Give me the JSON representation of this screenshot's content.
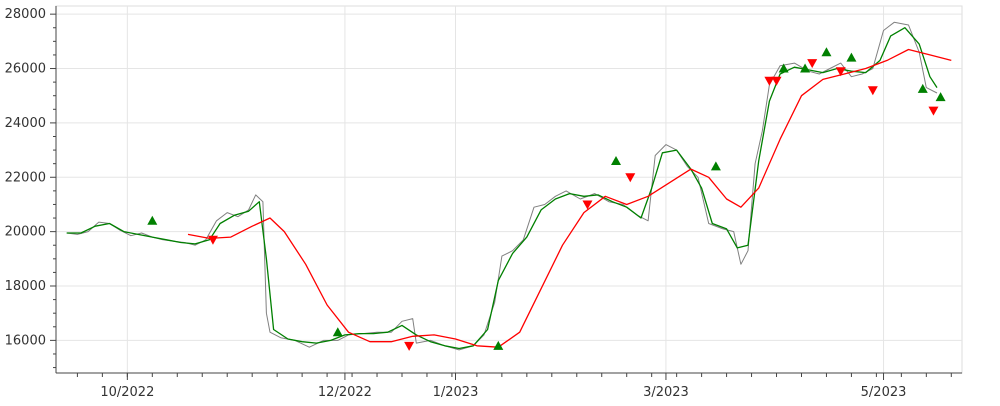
{
  "chart_data": {
    "type": "line",
    "title": "",
    "xlabel": "",
    "ylabel": "",
    "x_range": [
      "2022-09-11",
      "2023-05-23"
    ],
    "ylim": [
      14800,
      28300
    ],
    "grid": true,
    "legend": "none",
    "y_ticks": [
      16000,
      18000,
      20000,
      22000,
      24000,
      26000,
      28000
    ],
    "y_tick_labels": [
      "16000",
      "18000",
      "20000",
      "22000",
      "24000",
      "26000",
      "28000"
    ],
    "x_ticks": [
      "2022-10-01",
      "2022-12-01",
      "2023-01-01",
      "2023-03-01",
      "2023-05-01"
    ],
    "x_tick_labels": [
      "10/2022",
      "12/2022",
      "1/2023",
      "3/2023",
      "5/2023"
    ],
    "series": [
      {
        "role": "price",
        "color": "#808080",
        "points": [
          [
            "2022-09-14",
            19950
          ],
          [
            "2022-09-17",
            19900
          ],
          [
            "2022-09-20",
            20000
          ],
          [
            "2022-09-23",
            20350
          ],
          [
            "2022-09-26",
            20300
          ],
          [
            "2022-09-29",
            20050
          ],
          [
            "2022-10-02",
            19850
          ],
          [
            "2022-10-05",
            19950
          ],
          [
            "2022-10-08",
            19800
          ],
          [
            "2022-10-11",
            19700
          ],
          [
            "2022-10-14",
            19650
          ],
          [
            "2022-10-17",
            19600
          ],
          [
            "2022-10-20",
            19500
          ],
          [
            "2022-10-23",
            19700
          ],
          [
            "2022-10-26",
            20400
          ],
          [
            "2022-10-29",
            20700
          ],
          [
            "2022-11-01",
            20550
          ],
          [
            "2022-11-04",
            20800
          ],
          [
            "2022-11-06",
            21350
          ],
          [
            "2022-11-08",
            21100
          ],
          [
            "2022-11-09",
            17000
          ],
          [
            "2022-11-10",
            16300
          ],
          [
            "2022-11-13",
            16100
          ],
          [
            "2022-11-17",
            16000
          ],
          [
            "2022-11-21",
            15750
          ],
          [
            "2022-11-25",
            16000
          ],
          [
            "2022-11-29",
            16000
          ],
          [
            "2022-12-02",
            16200
          ],
          [
            "2022-12-06",
            16250
          ],
          [
            "2022-12-10",
            16300
          ],
          [
            "2022-12-14",
            16300
          ],
          [
            "2022-12-17",
            16700
          ],
          [
            "2022-12-20",
            16800
          ],
          [
            "2022-12-21",
            15900
          ],
          [
            "2022-12-25",
            16000
          ],
          [
            "2022-12-29",
            15800
          ],
          [
            "2023-01-02",
            15650
          ],
          [
            "2023-01-06",
            15800
          ],
          [
            "2023-01-09",
            16200
          ],
          [
            "2023-01-12",
            17400
          ],
          [
            "2023-01-14",
            19100
          ],
          [
            "2023-01-17",
            19300
          ],
          [
            "2023-01-20",
            19700
          ],
          [
            "2023-01-23",
            20900
          ],
          [
            "2023-01-26",
            21000
          ],
          [
            "2023-01-29",
            21300
          ],
          [
            "2023-02-01",
            21500
          ],
          [
            "2023-02-05",
            21200
          ],
          [
            "2023-02-09",
            21400
          ],
          [
            "2023-02-13",
            21100
          ],
          [
            "2023-02-17",
            21000
          ],
          [
            "2023-02-21",
            20600
          ],
          [
            "2023-02-24",
            20400
          ],
          [
            "2023-02-26",
            22800
          ],
          [
            "2023-03-01",
            23200
          ],
          [
            "2023-03-04",
            23000
          ],
          [
            "2023-03-07",
            22400
          ],
          [
            "2023-03-10",
            22000
          ],
          [
            "2023-03-13",
            20300
          ],
          [
            "2023-03-17",
            20100
          ],
          [
            "2023-03-20",
            20000
          ],
          [
            "2023-03-22",
            18800
          ],
          [
            "2023-03-24",
            19300
          ],
          [
            "2023-03-26",
            22500
          ],
          [
            "2023-03-28",
            23700
          ],
          [
            "2023-03-30",
            25400
          ],
          [
            "2023-04-02",
            26100
          ],
          [
            "2023-04-06",
            26200
          ],
          [
            "2023-04-10",
            25900
          ],
          [
            "2023-04-13",
            25800
          ],
          [
            "2023-04-16",
            26000
          ],
          [
            "2023-04-19",
            26200
          ],
          [
            "2023-04-22",
            25700
          ],
          [
            "2023-04-25",
            25800
          ],
          [
            "2023-04-28",
            26000
          ],
          [
            "2023-05-01",
            27400
          ],
          [
            "2023-05-04",
            27700
          ],
          [
            "2023-05-08",
            27600
          ],
          [
            "2023-05-11",
            26600
          ],
          [
            "2023-05-13",
            25300
          ],
          [
            "2023-05-16",
            25100
          ]
        ]
      },
      {
        "role": "fast-average",
        "color": "#008000",
        "points": [
          [
            "2022-09-14",
            19950
          ],
          [
            "2022-09-18",
            19950
          ],
          [
            "2022-09-22",
            20200
          ],
          [
            "2022-09-26",
            20300
          ],
          [
            "2022-09-30",
            20000
          ],
          [
            "2022-10-04",
            19900
          ],
          [
            "2022-10-08",
            19800
          ],
          [
            "2022-10-12",
            19700
          ],
          [
            "2022-10-16",
            19600
          ],
          [
            "2022-10-20",
            19550
          ],
          [
            "2022-10-24",
            19700
          ],
          [
            "2022-10-27",
            20300
          ],
          [
            "2022-10-31",
            20600
          ],
          [
            "2022-11-04",
            20750
          ],
          [
            "2022-11-07",
            21100
          ],
          [
            "2022-11-09",
            19000
          ],
          [
            "2022-11-11",
            16400
          ],
          [
            "2022-11-15",
            16050
          ],
          [
            "2022-11-19",
            15950
          ],
          [
            "2022-11-23",
            15900
          ],
          [
            "2022-11-27",
            16000
          ],
          [
            "2022-12-01",
            16200
          ],
          [
            "2022-12-05",
            16250
          ],
          [
            "2022-12-09",
            16250
          ],
          [
            "2022-12-13",
            16300
          ],
          [
            "2022-12-17",
            16550
          ],
          [
            "2022-12-21",
            16200
          ],
          [
            "2022-12-25",
            15950
          ],
          [
            "2022-12-29",
            15800
          ],
          [
            "2023-01-02",
            15700
          ],
          [
            "2023-01-06",
            15800
          ],
          [
            "2023-01-10",
            16400
          ],
          [
            "2023-01-13",
            18200
          ],
          [
            "2023-01-17",
            19200
          ],
          [
            "2023-01-21",
            19800
          ],
          [
            "2023-01-25",
            20800
          ],
          [
            "2023-01-29",
            21200
          ],
          [
            "2023-02-02",
            21400
          ],
          [
            "2023-02-06",
            21300
          ],
          [
            "2023-02-10",
            21350
          ],
          [
            "2023-02-14",
            21100
          ],
          [
            "2023-02-18",
            20900
          ],
          [
            "2023-02-22",
            20500
          ],
          [
            "2023-02-25",
            21600
          ],
          [
            "2023-02-28",
            22900
          ],
          [
            "2023-03-04",
            23000
          ],
          [
            "2023-03-08",
            22300
          ],
          [
            "2023-03-11",
            21600
          ],
          [
            "2023-03-14",
            20300
          ],
          [
            "2023-03-18",
            20100
          ],
          [
            "2023-03-21",
            19400
          ],
          [
            "2023-03-24",
            19500
          ],
          [
            "2023-03-27",
            22600
          ],
          [
            "2023-03-30",
            24800
          ],
          [
            "2023-04-02",
            25800
          ],
          [
            "2023-04-06",
            26050
          ],
          [
            "2023-04-10",
            25950
          ],
          [
            "2023-04-14",
            25850
          ],
          [
            "2023-04-18",
            26000
          ],
          [
            "2023-04-22",
            25900
          ],
          [
            "2023-04-26",
            25850
          ],
          [
            "2023-04-30",
            26300
          ],
          [
            "2023-05-03",
            27200
          ],
          [
            "2023-05-07",
            27500
          ],
          [
            "2023-05-11",
            26900
          ],
          [
            "2023-05-14",
            25700
          ],
          [
            "2023-05-16",
            25300
          ]
        ]
      },
      {
        "role": "slow-average",
        "color": "#ff0000",
        "points": [
          [
            "2022-10-18",
            19900
          ],
          [
            "2022-10-24",
            19750
          ],
          [
            "2022-10-30",
            19800
          ],
          [
            "2022-11-05",
            20200
          ],
          [
            "2022-11-10",
            20500
          ],
          [
            "2022-11-14",
            20000
          ],
          [
            "2022-11-20",
            18800
          ],
          [
            "2022-11-26",
            17300
          ],
          [
            "2022-12-02",
            16300
          ],
          [
            "2022-12-08",
            15950
          ],
          [
            "2022-12-14",
            15950
          ],
          [
            "2022-12-20",
            16150
          ],
          [
            "2022-12-26",
            16200
          ],
          [
            "2023-01-01",
            16050
          ],
          [
            "2023-01-07",
            15800
          ],
          [
            "2023-01-13",
            15750
          ],
          [
            "2023-01-19",
            16300
          ],
          [
            "2023-01-25",
            17900
          ],
          [
            "2023-01-31",
            19500
          ],
          [
            "2023-02-06",
            20700
          ],
          [
            "2023-02-12",
            21300
          ],
          [
            "2023-02-18",
            21000
          ],
          [
            "2023-02-24",
            21300
          ],
          [
            "2023-03-02",
            21800
          ],
          [
            "2023-03-08",
            22300
          ],
          [
            "2023-03-13",
            22000
          ],
          [
            "2023-03-18",
            21200
          ],
          [
            "2023-03-22",
            20900
          ],
          [
            "2023-03-27",
            21600
          ],
          [
            "2023-04-02",
            23400
          ],
          [
            "2023-04-08",
            25000
          ],
          [
            "2023-04-14",
            25600
          ],
          [
            "2023-04-20",
            25800
          ],
          [
            "2023-04-26",
            26000
          ],
          [
            "2023-05-02",
            26300
          ],
          [
            "2023-05-08",
            26700
          ],
          [
            "2023-05-14",
            26500
          ],
          [
            "2023-05-20",
            26300
          ]
        ]
      }
    ],
    "markers": {
      "buy": {
        "color": "#008000",
        "points": [
          [
            "2022-10-08",
            20400
          ],
          [
            "2022-11-29",
            16300
          ],
          [
            "2023-01-13",
            15800
          ],
          [
            "2023-02-15",
            22600
          ],
          [
            "2023-03-15",
            22400
          ],
          [
            "2023-04-03",
            26000
          ],
          [
            "2023-04-09",
            26000
          ],
          [
            "2023-04-15",
            26600
          ],
          [
            "2023-04-22",
            26400
          ],
          [
            "2023-05-12",
            25250
          ],
          [
            "2023-05-17",
            24950
          ]
        ]
      },
      "sell": {
        "color": "#ff0000",
        "points": [
          [
            "2022-10-25",
            19700
          ],
          [
            "2022-12-19",
            15800
          ],
          [
            "2023-02-07",
            21000
          ],
          [
            "2023-02-19",
            22000
          ],
          [
            "2023-03-30",
            25550
          ],
          [
            "2023-04-01",
            25550
          ],
          [
            "2023-04-11",
            26200
          ],
          [
            "2023-04-19",
            25900
          ],
          [
            "2023-04-28",
            25200
          ],
          [
            "2023-05-15",
            24450
          ]
        ]
      }
    }
  }
}
